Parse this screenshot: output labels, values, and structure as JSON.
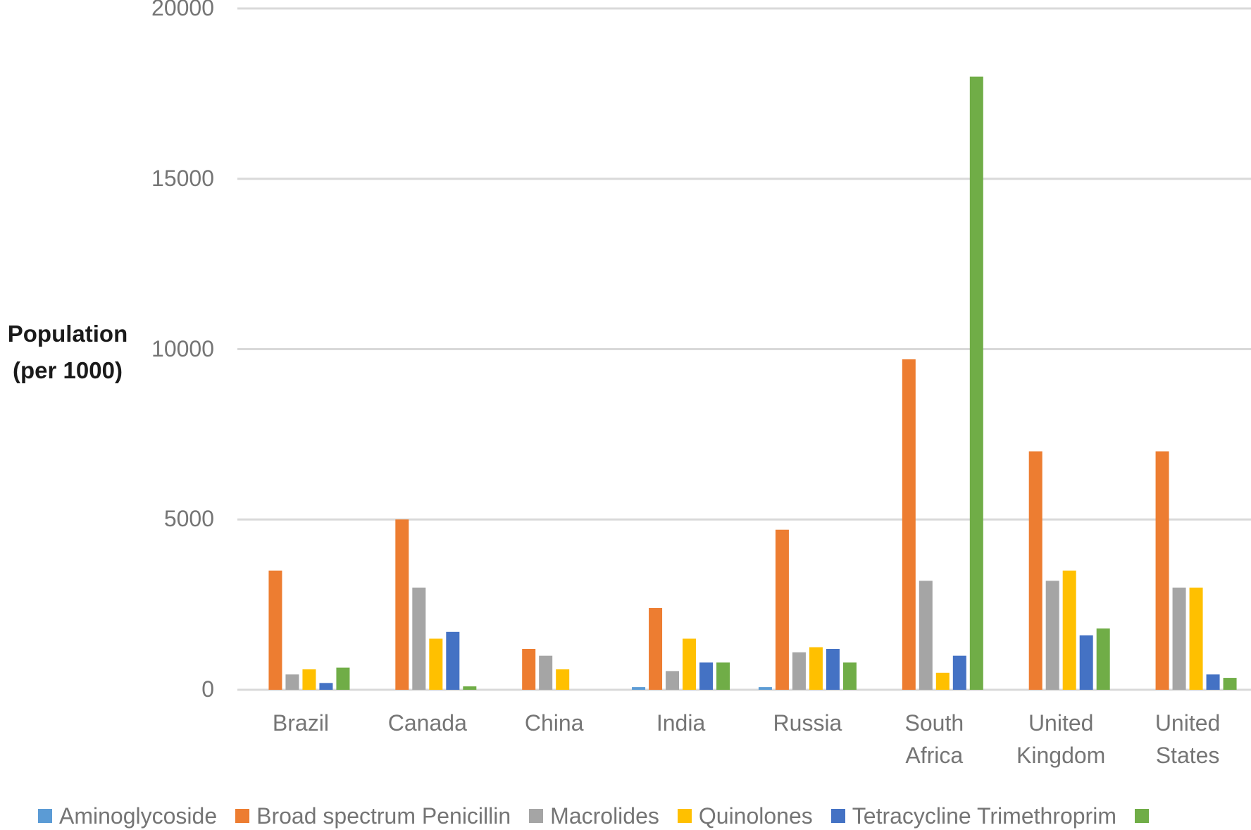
{
  "chart_data": {
    "type": "bar",
    "title": "",
    "xlabel": "",
    "ylabel": "Population (per 1000)",
    "ylabel_lines": [
      "Population",
      "(per 1000)"
    ],
    "ylim": [
      0,
      20000
    ],
    "yticks": [
      0,
      5000,
      10000,
      15000,
      20000
    ],
    "grid": true,
    "legend_position": "bottom",
    "categories": [
      "Brazil",
      "Canada",
      "China",
      "India",
      "Russia",
      "South Africa",
      "United Kingdom",
      "United States"
    ],
    "category_lines": [
      [
        "Brazil"
      ],
      [
        "Canada"
      ],
      [
        "China"
      ],
      [
        "India"
      ],
      [
        "Russia"
      ],
      [
        "South",
        "Africa"
      ],
      [
        "United",
        "Kingdom"
      ],
      [
        "United",
        "States"
      ]
    ],
    "series": [
      {
        "name": "Aminoglycoside",
        "legend_label": "Aminoglycoside",
        "color": "#5B9BD5",
        "values": [
          0,
          0,
          0,
          80,
          80,
          0,
          0,
          0
        ]
      },
      {
        "name": "Broad spectrum Penicillin",
        "legend_label": "Broad spectrum Penicillin",
        "color": "#ED7D31",
        "values": [
          3500,
          5000,
          1200,
          2400,
          4700,
          9700,
          7000,
          7000
        ]
      },
      {
        "name": "Macrolides",
        "legend_label": "Macrolides",
        "color": "#A5A5A5",
        "values": [
          450,
          3000,
          1000,
          550,
          1100,
          3200,
          3200,
          3000
        ]
      },
      {
        "name": "Quinolones",
        "legend_label": "Quinolones",
        "color": "#FFC000",
        "values": [
          600,
          1500,
          600,
          1500,
          1250,
          500,
          3500,
          3000
        ]
      },
      {
        "name": "Tetracycline",
        "legend_label": "Tetracycline Trimethroprim",
        "color": "#4472C4",
        "values": [
          200,
          1700,
          0,
          800,
          1200,
          1000,
          1600,
          450
        ]
      },
      {
        "name": "Trimethroprim",
        "legend_label": "",
        "color": "#70AD47",
        "values": [
          650,
          100,
          0,
          800,
          800,
          18000,
          1800,
          350
        ]
      }
    ]
  },
  "axis": {
    "ytitle_line1": "Population",
    "ytitle_line2": "(per 1000)",
    "gridline_color": "#D9D9D9"
  }
}
